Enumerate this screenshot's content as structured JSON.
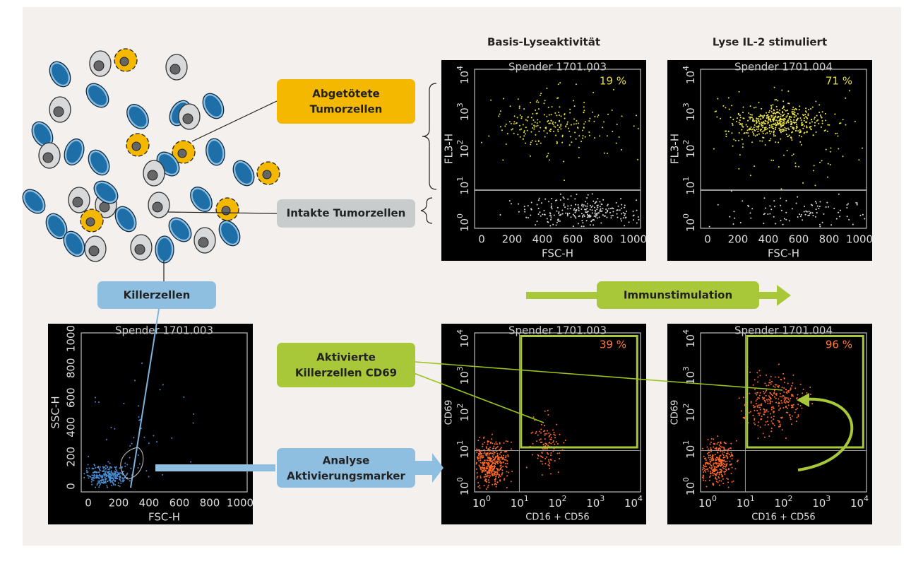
{
  "headers": [
    "Basis-Lyseaktivität",
    "Lyse IL-2 stimuliert"
  ],
  "callouts": {
    "killed": [
      "Abgetötete",
      "Tumorzellen"
    ],
    "intact": [
      "Intakte Tumorzellen"
    ],
    "killer": [
      "Killerzellen"
    ],
    "stimulation": [
      "Immunstimulation"
    ],
    "activated": [
      "Aktivierte",
      "Killerzellen CD69"
    ],
    "analysis": [
      "Analyse",
      "Aktivierungsmarker"
    ]
  },
  "plots": [
    {
      "title": "Spender 1701.003",
      "x_label": "FSC-H",
      "y_label": "FL3-H",
      "gate_percent": "19 %",
      "x_ticks": [
        "0",
        "200",
        "400",
        "600",
        "800",
        "1000"
      ],
      "y_ticks": [
        {
          "base": "10",
          "exp": "0"
        },
        {
          "base": "10",
          "exp": "1"
        },
        {
          "base": "10",
          "exp": "2"
        },
        {
          "base": "10",
          "exp": "3"
        },
        {
          "base": "10",
          "exp": "4"
        }
      ]
    },
    {
      "title": "Spender 1701.004",
      "x_label": "FSC-H",
      "y_label": "FL3-H",
      "gate_percent": "71 %",
      "x_ticks": [
        "0",
        "200",
        "400",
        "600",
        "800",
        "1000"
      ],
      "y_ticks": [
        {
          "base": "10",
          "exp": "0"
        },
        {
          "base": "10",
          "exp": "1"
        },
        {
          "base": "10",
          "exp": "2"
        },
        {
          "base": "10",
          "exp": "3"
        },
        {
          "base": "10",
          "exp": "4"
        }
      ]
    },
    {
      "title": "Spender 1701.003",
      "x_label": "FSC-H",
      "y_label": "SSC-H",
      "x_ticks": [
        "0",
        "200",
        "400",
        "600",
        "800",
        "1000"
      ],
      "y_ticks": [
        "0",
        "200",
        "400",
        "600",
        "800",
        "1000"
      ]
    },
    {
      "title": "Spender 1701.003",
      "x_label": "CD16 + CD56",
      "y_label": "CD69",
      "gate_percent": "39 %",
      "x_ticks": [
        {
          "base": "10",
          "exp": "0"
        },
        {
          "base": "10",
          "exp": "1"
        },
        {
          "base": "10",
          "exp": "2"
        },
        {
          "base": "10",
          "exp": "3"
        },
        {
          "base": "10",
          "exp": "4"
        }
      ],
      "y_ticks": [
        {
          "base": "10",
          "exp": "0"
        },
        {
          "base": "10",
          "exp": "1"
        },
        {
          "base": "10",
          "exp": "2"
        },
        {
          "base": "10",
          "exp": "3"
        },
        {
          "base": "10",
          "exp": "4"
        }
      ]
    },
    {
      "title": "Spender 1701.004",
      "x_label": "CD16 + CD56",
      "y_label": "CD69",
      "gate_percent": "96 %",
      "x_ticks": [
        {
          "base": "10",
          "exp": "0"
        },
        {
          "base": "10",
          "exp": "1"
        },
        {
          "base": "10",
          "exp": "2"
        },
        {
          "base": "10",
          "exp": "3"
        },
        {
          "base": "10",
          "exp": "4"
        }
      ],
      "y_ticks": [
        {
          "base": "10",
          "exp": "0"
        },
        {
          "base": "10",
          "exp": "1"
        },
        {
          "base": "10",
          "exp": "2"
        },
        {
          "base": "10",
          "exp": "3"
        },
        {
          "base": "10",
          "exp": "4"
        }
      ]
    }
  ]
}
